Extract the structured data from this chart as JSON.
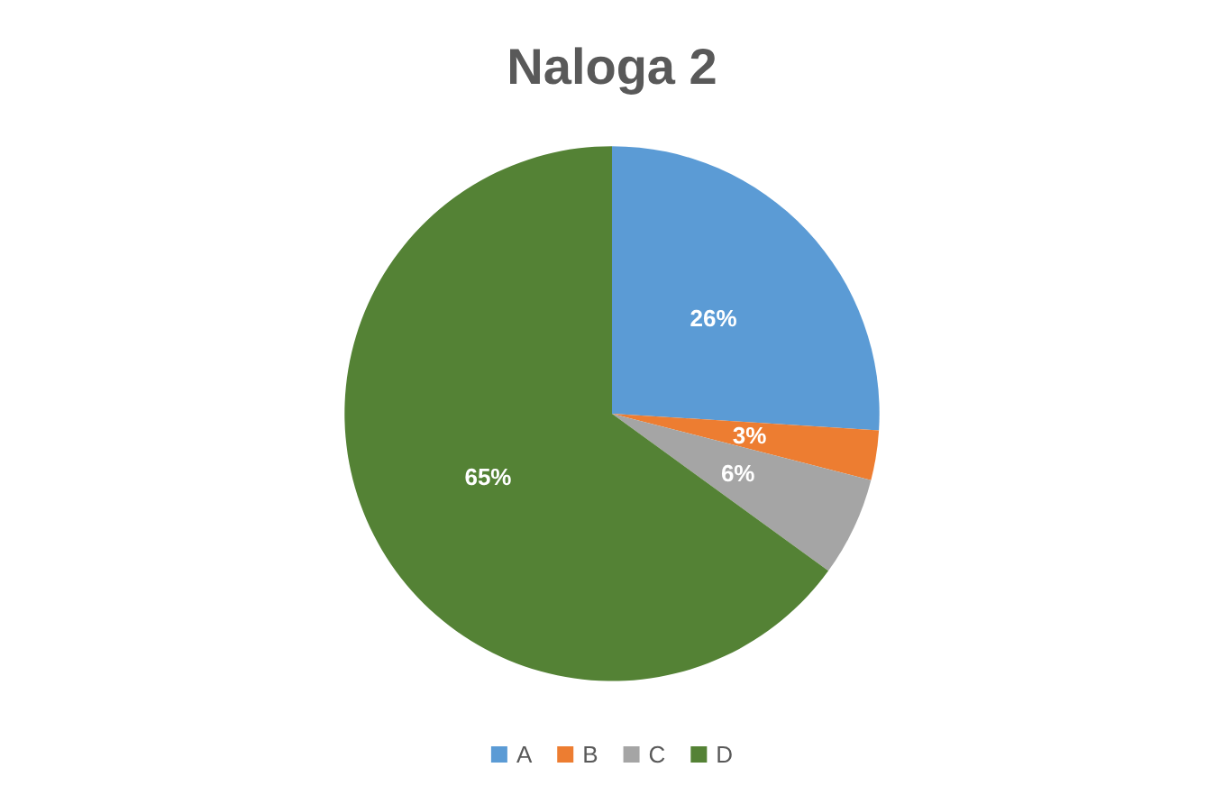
{
  "chart_data": {
    "type": "pie",
    "title": "Naloga 2",
    "categories": [
      "A",
      "B",
      "C",
      "D"
    ],
    "values": [
      26,
      3,
      6,
      65
    ],
    "colors": [
      "#5b9bd5",
      "#ed7d31",
      "#a5a5a5",
      "#548235"
    ],
    "value_labels": [
      "26%",
      "3%",
      "6%",
      "65%"
    ],
    "legend": "bottom"
  }
}
